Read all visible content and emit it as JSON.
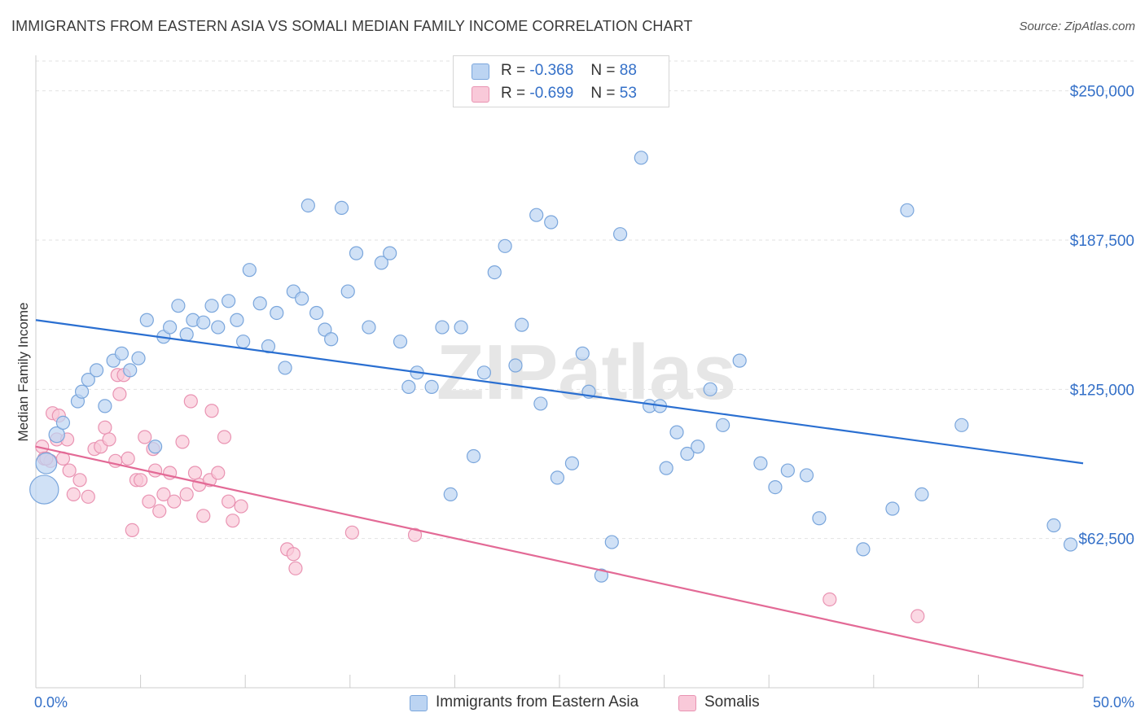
{
  "title": "IMMIGRANTS FROM EASTERN ASIA VS SOMALI MEDIAN FAMILY INCOME CORRELATION CHART",
  "source": "Source: ZipAtlas.com",
  "watermark": "ZIPatlas",
  "legend": {
    "r_label": "R =",
    "n_label": "N =",
    "series": [
      {
        "name": "Immigrants from Eastern Asia",
        "r": "-0.368",
        "n": "88",
        "fill": "#a8c8f0",
        "stroke": "#6a9ad8"
      },
      {
        "name": "Somalis",
        "r": "-0.699",
        "n": "53",
        "fill": "#f8bcd0",
        "stroke": "#e87aa0"
      }
    ]
  },
  "colors": {
    "blue_point_fill": "#bcd4f2",
    "blue_point_stroke": "#7aa6dc",
    "blue_line": "#2a6fd1",
    "pink_point_fill": "#f9c9d9",
    "pink_point_stroke": "#e993b2",
    "pink_line": "#e36a96",
    "axis_label": "#3470c8",
    "grid": "#e2e2e2"
  },
  "chart_data": {
    "type": "scatter",
    "title": "IMMIGRANTS FROM EASTERN ASIA VS SOMALI MEDIAN FAMILY INCOME CORRELATION CHART",
    "xlabel": "",
    "ylabel": "Median Family Income",
    "xlim": [
      0,
      50
    ],
    "ylim": [
      0,
      262500
    ],
    "x_tick_labels": [
      "0.0%",
      "50.0%"
    ],
    "y_ticks": [
      62500,
      125000,
      187500,
      250000
    ],
    "y_tick_labels": [
      "$62,500",
      "$125,000",
      "$187,500",
      "$250,000"
    ],
    "grid": "horizontal dashed",
    "legend_position": "top-center and bottom",
    "series": [
      {
        "name": "Immigrants from Eastern Asia",
        "trend": {
          "x": [
            0,
            50
          ],
          "y": [
            154000,
            94000
          ]
        },
        "points": [
          [
            0.4,
            83000,
            2.2
          ],
          [
            0.5,
            94000,
            1.6
          ],
          [
            1.0,
            106000,
            1.2
          ],
          [
            1.3,
            111000,
            1.0
          ],
          [
            2.0,
            120000,
            1.0
          ],
          [
            2.2,
            124000,
            1.0
          ],
          [
            2.5,
            129000,
            1.0
          ],
          [
            2.9,
            133000,
            1.0
          ],
          [
            3.3,
            118000,
            1.0
          ],
          [
            3.7,
            137000,
            1.0
          ],
          [
            4.1,
            140000,
            1.0
          ],
          [
            4.5,
            133000,
            1.0
          ],
          [
            4.9,
            138000,
            1.0
          ],
          [
            5.3,
            154000,
            1.0
          ],
          [
            5.7,
            101000,
            1.0
          ],
          [
            6.1,
            147000,
            1.0
          ],
          [
            6.4,
            151000,
            1.0
          ],
          [
            6.8,
            160000,
            1.0
          ],
          [
            7.2,
            148000,
            1.0
          ],
          [
            7.5,
            154000,
            1.0
          ],
          [
            8.0,
            153000,
            1.0
          ],
          [
            8.4,
            160000,
            1.0
          ],
          [
            8.7,
            151000,
            1.0
          ],
          [
            9.2,
            162000,
            1.0
          ],
          [
            9.6,
            154000,
            1.0
          ],
          [
            9.9,
            145000,
            1.0
          ],
          [
            10.2,
            175000,
            1.0
          ],
          [
            10.7,
            161000,
            1.0
          ],
          [
            11.1,
            143000,
            1.0
          ],
          [
            11.5,
            157000,
            1.0
          ],
          [
            11.9,
            134000,
            1.0
          ],
          [
            12.3,
            166000,
            1.0
          ],
          [
            12.7,
            163000,
            1.0
          ],
          [
            13.0,
            202000,
            1.0
          ],
          [
            13.4,
            157000,
            1.0
          ],
          [
            13.8,
            150000,
            1.0
          ],
          [
            14.1,
            146000,
            1.0
          ],
          [
            14.6,
            201000,
            1.0
          ],
          [
            14.9,
            166000,
            1.0
          ],
          [
            15.3,
            182000,
            1.0
          ],
          [
            15.9,
            151000,
            1.0
          ],
          [
            16.5,
            178000,
            1.0
          ],
          [
            16.9,
            182000,
            1.0
          ],
          [
            17.4,
            145000,
            1.0
          ],
          [
            17.8,
            126000,
            1.0
          ],
          [
            18.2,
            132000,
            1.0
          ],
          [
            18.9,
            126000,
            1.0
          ],
          [
            19.4,
            151000,
            1.0
          ],
          [
            19.8,
            81000,
            1.0
          ],
          [
            20.3,
            151000,
            1.0
          ],
          [
            20.9,
            97000,
            1.0
          ],
          [
            21.4,
            132000,
            1.0
          ],
          [
            21.9,
            174000,
            1.0
          ],
          [
            22.4,
            185000,
            1.0
          ],
          [
            22.9,
            135000,
            1.0
          ],
          [
            23.2,
            152000,
            1.0
          ],
          [
            23.9,
            198000,
            1.0
          ],
          [
            24.1,
            119000,
            1.0
          ],
          [
            24.6,
            195000,
            1.0
          ],
          [
            24.9,
            88000,
            1.0
          ],
          [
            25.6,
            94000,
            1.0
          ],
          [
            26.1,
            140000,
            1.0
          ],
          [
            26.4,
            124000,
            1.0
          ],
          [
            27.0,
            47000,
            1.0
          ],
          [
            27.5,
            61000,
            1.0
          ],
          [
            27.9,
            190000,
            1.0
          ],
          [
            28.9,
            222000,
            1.0
          ],
          [
            29.3,
            118000,
            1.0
          ],
          [
            29.8,
            118000,
            1.0
          ],
          [
            30.1,
            92000,
            1.0
          ],
          [
            30.6,
            107000,
            1.0
          ],
          [
            31.1,
            98000,
            1.0
          ],
          [
            31.6,
            101000,
            1.0
          ],
          [
            32.2,
            125000,
            1.0
          ],
          [
            32.8,
            110000,
            1.0
          ],
          [
            33.6,
            137000,
            1.0
          ],
          [
            34.6,
            94000,
            1.0
          ],
          [
            35.3,
            84000,
            1.0
          ],
          [
            35.9,
            91000,
            1.0
          ],
          [
            36.8,
            89000,
            1.0
          ],
          [
            37.4,
            71000,
            1.0
          ],
          [
            39.5,
            58000,
            1.0
          ],
          [
            40.9,
            75000,
            1.0
          ],
          [
            41.6,
            200000,
            1.0
          ],
          [
            42.3,
            81000,
            1.0
          ],
          [
            44.2,
            110000,
            1.0
          ],
          [
            48.6,
            68000,
            1.0
          ],
          [
            49.4,
            60000,
            1.0
          ]
        ]
      },
      {
        "name": "Somalis",
        "trend": {
          "x": [
            0,
            50
          ],
          "y": [
            101000,
            5000
          ]
        },
        "points": [
          [
            0.3,
            101000,
            1.0
          ],
          [
            0.4,
            96000,
            1.0
          ],
          [
            0.7,
            95000,
            1.0
          ],
          [
            0.8,
            115000,
            1.0
          ],
          [
            1.0,
            104000,
            1.0
          ],
          [
            1.1,
            114000,
            1.0
          ],
          [
            1.3,
            96000,
            1.0
          ],
          [
            1.5,
            104000,
            1.0
          ],
          [
            1.6,
            91000,
            1.0
          ],
          [
            1.8,
            81000,
            1.0
          ],
          [
            2.1,
            87000,
            1.0
          ],
          [
            2.5,
            80000,
            1.0
          ],
          [
            2.8,
            100000,
            1.0
          ],
          [
            3.1,
            101000,
            1.0
          ],
          [
            3.3,
            109000,
            1.0
          ],
          [
            3.5,
            104000,
            1.0
          ],
          [
            3.8,
            95000,
            1.0
          ],
          [
            3.9,
            131000,
            1.0
          ],
          [
            4.0,
            123000,
            1.0
          ],
          [
            4.2,
            131000,
            1.0
          ],
          [
            4.4,
            96000,
            1.0
          ],
          [
            4.6,
            66000,
            1.0
          ],
          [
            4.8,
            87000,
            1.0
          ],
          [
            5.0,
            87000,
            1.0
          ],
          [
            5.2,
            105000,
            1.0
          ],
          [
            5.4,
            78000,
            1.0
          ],
          [
            5.6,
            100000,
            1.0
          ],
          [
            5.7,
            91000,
            1.0
          ],
          [
            5.9,
            74000,
            1.0
          ],
          [
            6.1,
            81000,
            1.0
          ],
          [
            6.4,
            90000,
            1.0
          ],
          [
            6.6,
            78000,
            1.0
          ],
          [
            7.0,
            103000,
            1.0
          ],
          [
            7.2,
            81000,
            1.0
          ],
          [
            7.4,
            120000,
            1.0
          ],
          [
            7.6,
            90000,
            1.0
          ],
          [
            7.8,
            85000,
            1.0
          ],
          [
            8.0,
            72000,
            1.0
          ],
          [
            8.3,
            87000,
            1.0
          ],
          [
            8.4,
            116000,
            1.0
          ],
          [
            8.7,
            90000,
            1.0
          ],
          [
            9.0,
            105000,
            1.0
          ],
          [
            9.2,
            78000,
            1.0
          ],
          [
            9.4,
            70000,
            1.0
          ],
          [
            9.8,
            76000,
            1.0
          ],
          [
            12.0,
            58000,
            1.0
          ],
          [
            12.3,
            56000,
            1.0
          ],
          [
            12.4,
            50000,
            1.0
          ],
          [
            15.1,
            65000,
            1.0
          ],
          [
            18.1,
            64000,
            1.0
          ],
          [
            37.9,
            37000,
            1.0
          ],
          [
            42.1,
            30000,
            1.0
          ],
          [
            0.5,
            96000,
            1.0
          ]
        ]
      }
    ]
  }
}
